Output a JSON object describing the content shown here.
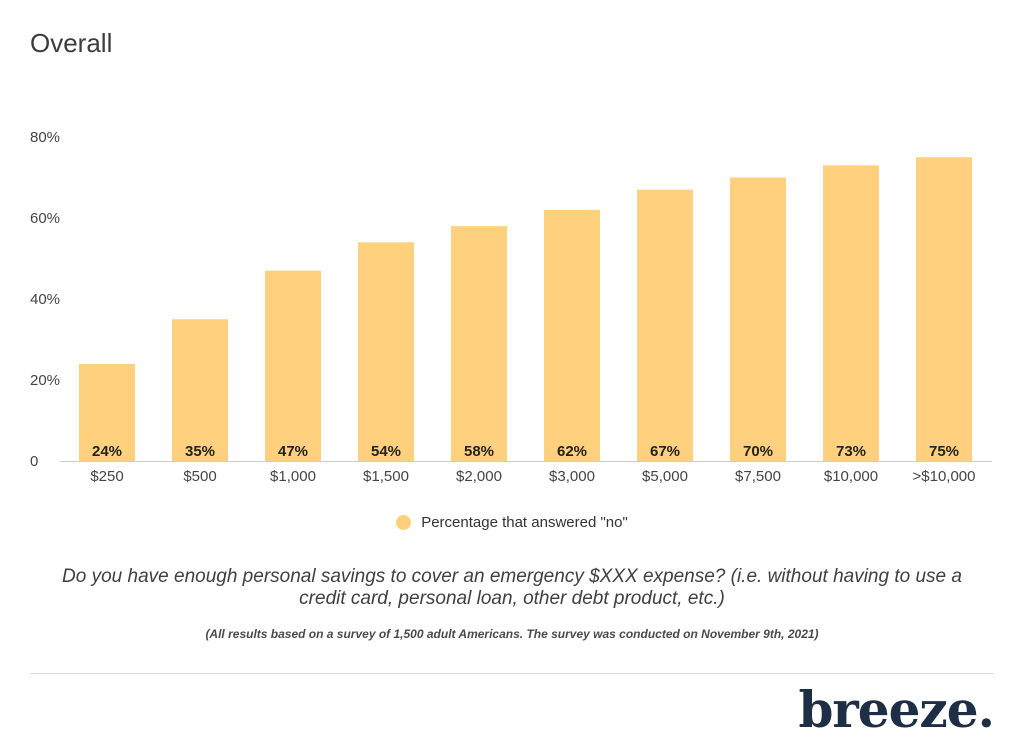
{
  "page": {
    "title": "Overall",
    "question": "Do you have enough personal savings to cover an emergency $XXX expense? (i.e. without having to use a credit card, personal loan, other debt product, etc.)",
    "footnote": "(All results based on a survey of 1,500 adult Americans. The survey was conducted on November 9th, 2021)",
    "brand": "breeze."
  },
  "colors": {
    "bar": "#ffd17f",
    "axis": "#cccccc",
    "brand": "#1d2e45"
  },
  "chart_data": {
    "type": "bar",
    "title": "Overall",
    "xlabel": "",
    "ylabel": "",
    "categories": [
      "$250",
      "$500",
      "$1,000",
      "$1,500",
      "$2,000",
      "$3,000",
      "$5,000",
      "$7,500",
      "$10,000",
      ">$10,000"
    ],
    "series": [
      {
        "name": "Percentage that answered \"no\"",
        "values": [
          24,
          35,
          47,
          54,
          58,
          62,
          67,
          70,
          73,
          75
        ],
        "labels": [
          "24%",
          "35%",
          "47%",
          "54%",
          "58%",
          "62%",
          "67%",
          "70%",
          "73%",
          "75%"
        ]
      }
    ],
    "ylim": [
      0,
      80
    ],
    "yticks": [
      0,
      20,
      40,
      60,
      80
    ],
    "ytick_labels": [
      "0",
      "20%",
      "40%",
      "60%",
      "80%"
    ],
    "grid": false,
    "legend_position": "bottom"
  }
}
